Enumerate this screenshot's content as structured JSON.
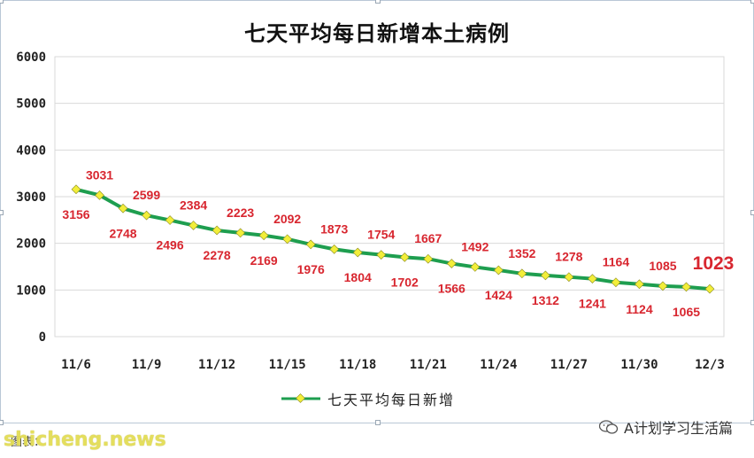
{
  "chart_data": {
    "type": "line",
    "title": "七天平均每日新增本土病例",
    "xlabel": "",
    "ylabel": "",
    "ylim": [
      0,
      6000
    ],
    "y_ticks": [
      0,
      1000,
      2000,
      3000,
      4000,
      5000,
      6000
    ],
    "grid": true,
    "legend_position": "bottom",
    "x": [
      "11/6",
      "11/7",
      "11/8",
      "11/9",
      "11/10",
      "11/11",
      "11/12",
      "11/13",
      "11/14",
      "11/15",
      "11/16",
      "11/17",
      "11/18",
      "11/19",
      "11/20",
      "11/21",
      "11/22",
      "11/23",
      "11/24",
      "11/25",
      "11/26",
      "11/27",
      "11/28",
      "11/29",
      "11/30",
      "12/1",
      "12/2",
      "12/3"
    ],
    "x_tick_labels": [
      "11/6",
      "11/9",
      "11/12",
      "11/15",
      "11/18",
      "11/21",
      "11/24",
      "11/27",
      "11/30",
      "12/3"
    ],
    "series": [
      {
        "name": "七天平均每日新增",
        "color": "#1e9e4f",
        "marker_color": "#f2ee3a",
        "values": [
          3156,
          3031,
          2748,
          2599,
          2496,
          2384,
          2278,
          2223,
          2169,
          2092,
          1976,
          1873,
          1804,
          1754,
          1702,
          1667,
          1566,
          1492,
          1424,
          1352,
          1312,
          1278,
          1241,
          1164,
          1124,
          1085,
          1065,
          1023
        ]
      }
    ],
    "data_label_color": "#d8262f",
    "highlight_last": "1023"
  },
  "footer": {
    "source_text": "图表：",
    "watermark": "shicheng.news"
  },
  "brand": {
    "label": "A计划学习生活篇",
    "icon": "wechat-icon"
  },
  "colors": {
    "grid": "#d9d9d9",
    "axis_text": "#222222",
    "frame": "#b9c7d6"
  }
}
